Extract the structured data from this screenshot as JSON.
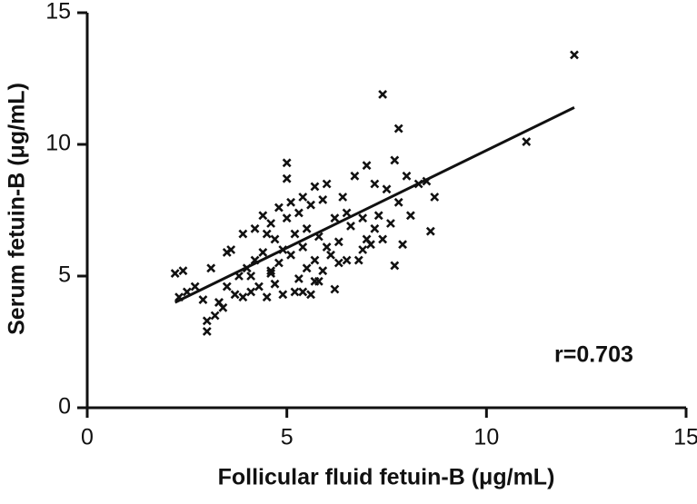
{
  "chart_data": {
    "type": "scatter",
    "x_label": "Follicular fluid fetuin-B (μg/mL)",
    "y_label": "Serum fetuin-B (μg/mL)",
    "annotation": "r=0.703",
    "xlim": [
      0,
      15
    ],
    "ylim": [
      0,
      15
    ],
    "xticks": [
      0,
      5,
      10,
      15
    ],
    "yticks": [
      0,
      5,
      10,
      15
    ],
    "color": "#111111",
    "marker": "x",
    "x": [
      2.2,
      2.3,
      2.4,
      2.5,
      2.7,
      2.9,
      3.0,
      3.1,
      3.2,
      3.3,
      3.4,
      3.5,
      3.5,
      3.6,
      3.7,
      3.8,
      3.9,
      3.9,
      4.0,
      4.1,
      4.2,
      4.2,
      4.3,
      4.4,
      4.4,
      4.5,
      4.5,
      4.6,
      4.6,
      4.7,
      4.7,
      4.8,
      4.8,
      4.9,
      4.9,
      5.0,
      5.0,
      5.0,
      5.1,
      5.1,
      5.2,
      5.2,
      5.3,
      5.3,
      5.4,
      5.4,
      5.5,
      5.5,
      5.6,
      5.6,
      5.7,
      5.7,
      5.8,
      5.8,
      5.9,
      5.9,
      6.0,
      6.0,
      6.1,
      6.2,
      6.2,
      6.3,
      6.4,
      6.5,
      6.5,
      6.6,
      6.7,
      6.8,
      6.9,
      7.0,
      7.0,
      7.1,
      7.2,
      7.3,
      7.4,
      7.4,
      7.5,
      7.6,
      7.7,
      7.7,
      7.8,
      7.8,
      7.9,
      8.0,
      8.1,
      8.3,
      8.5,
      8.6,
      8.7,
      11.0,
      12.2,
      3.0,
      3.3,
      4.1,
      4.6,
      5.4,
      5.7,
      6.3,
      6.9,
      7.2
    ],
    "values": [
      5.1,
      4.2,
      5.2,
      4.4,
      4.6,
      4.1,
      2.9,
      5.3,
      3.5,
      4.0,
      3.8,
      5.9,
      4.6,
      6.0,
      4.3,
      5.0,
      4.2,
      6.6,
      5.3,
      4.4,
      6.8,
      5.6,
      4.6,
      5.9,
      7.3,
      4.2,
      6.6,
      5.2,
      7.0,
      4.7,
      6.4,
      5.5,
      7.6,
      4.3,
      6.0,
      9.3,
      8.7,
      7.2,
      5.8,
      7.8,
      4.4,
      6.6,
      4.9,
      7.4,
      6.1,
      8.0,
      5.3,
      6.8,
      4.3,
      7.7,
      5.6,
      8.4,
      4.8,
      6.5,
      5.2,
      7.9,
      6.1,
      8.5,
      5.8,
      4.5,
      7.2,
      6.3,
      8.0,
      5.6,
      7.4,
      6.9,
      8.8,
      5.6,
      7.2,
      6.4,
      9.2,
      6.2,
      8.5,
      7.3,
      11.9,
      6.4,
      8.3,
      7.0,
      5.4,
      9.4,
      10.6,
      7.8,
      6.2,
      8.8,
      7.3,
      8.5,
      8.6,
      6.7,
      8.0,
      10.1,
      13.4,
      3.3,
      4.0,
      5.0,
      5.1,
      4.4,
      4.8,
      5.5,
      6.0,
      6.8
    ],
    "fit_line": {
      "x": [
        2.2,
        12.2
      ],
      "y": [
        4.0,
        11.4
      ]
    }
  }
}
